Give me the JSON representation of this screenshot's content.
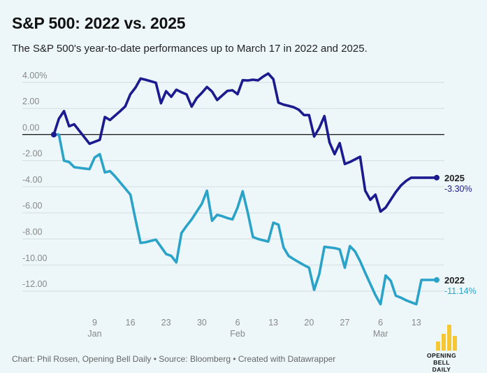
{
  "header": {
    "title": "S&P 500: 2022 vs. 2025",
    "subtitle": "The S&P 500's year-to-date performances up to March 17 in 2022 and 2025."
  },
  "footer": {
    "source": "Chart: Phil Rosen, Opening Bell Daily • Source: Bloomberg • Created with Datawrapper"
  },
  "logo": {
    "line1": "OPENING BELL",
    "line2": "DAILY",
    "color": "#f6c735"
  },
  "colors": {
    "series_2025": "#1c1a8f",
    "series_2022": "#2ba3c9",
    "grid": "#d4dde0",
    "zero_line": "#111111",
    "tick_text": "#888888",
    "background": "#edf7fa"
  },
  "chart_data": {
    "type": "line",
    "x_unit": "day of year",
    "x_tick_labels": [
      {
        "x": 9,
        "label": "9"
      },
      {
        "x": 16,
        "label": "16"
      },
      {
        "x": 23,
        "label": "23"
      },
      {
        "x": 30,
        "label": "30"
      },
      {
        "x": 37,
        "label": "6"
      },
      {
        "x": 44,
        "label": "13"
      },
      {
        "x": 51,
        "label": "20"
      },
      {
        "x": 58,
        "label": "27"
      },
      {
        "x": 65,
        "label": "6"
      },
      {
        "x": 72,
        "label": "13"
      }
    ],
    "month_labels": [
      {
        "x": 9,
        "label": "Jan"
      },
      {
        "x": 37,
        "label": "Feb"
      },
      {
        "x": 65,
        "label": "Mar"
      }
    ],
    "y_ticks": [
      {
        "value": 4,
        "label": "4.00%"
      },
      {
        "value": 2,
        "label": "2.00"
      },
      {
        "value": 0,
        "label": "0.00"
      },
      {
        "value": -2,
        "label": "-2.00"
      },
      {
        "value": -4,
        "label": "-4.00"
      },
      {
        "value": -6,
        "label": "-6.00"
      },
      {
        "value": -8,
        "label": "-8.00"
      },
      {
        "value": -10,
        "label": "-10.00"
      },
      {
        "value": -12,
        "label": "-12.00"
      }
    ],
    "xlim": [
      1,
      76
    ],
    "ylim": [
      -13.5,
      4.9
    ],
    "grid": true,
    "series": [
      {
        "name": "2025",
        "end_label": "-3.30%",
        "x": [
          1,
          2,
          3,
          4,
          5,
          8,
          10,
          11,
          12,
          14,
          15,
          16,
          17,
          18,
          19,
          21,
          22,
          23,
          24,
          25,
          26,
          27,
          28,
          29,
          30,
          31,
          32,
          33,
          35,
          36,
          37,
          38,
          39,
          40,
          41,
          42,
          43,
          44,
          45,
          46,
          47,
          48,
          49,
          50,
          51,
          52,
          53,
          54,
          55,
          56,
          57,
          58,
          59,
          61,
          62,
          63,
          64,
          65,
          66,
          67,
          68,
          69,
          70,
          71,
          72,
          73,
          74,
          75,
          76
        ],
        "y": [
          0.0,
          1.22,
          1.8,
          0.64,
          0.79,
          -0.7,
          -0.4,
          1.35,
          1.12,
          1.8,
          2.17,
          3.1,
          3.6,
          4.3,
          4.2,
          3.98,
          2.4,
          3.33,
          2.9,
          3.44,
          3.25,
          3.08,
          2.15,
          2.8,
          3.2,
          3.65,
          3.3,
          2.65,
          3.35,
          3.4,
          3.1,
          4.17,
          4.15,
          4.21,
          4.16,
          4.45,
          4.68,
          4.25,
          2.45,
          2.3,
          2.2,
          2.1,
          1.9,
          1.5,
          1.5,
          -0.15,
          0.5,
          1.42,
          -0.6,
          -1.5,
          -0.65,
          -2.25,
          -2.1,
          -1.7,
          -4.3,
          -5.0,
          -4.6,
          -5.9,
          -5.6,
          -5.0,
          -4.4,
          -3.9,
          -3.55,
          -3.3,
          -3.3,
          -3.3,
          -3.3,
          -3.3,
          -3.3
        ]
      },
      {
        "name": "2022",
        "end_label": "-11.14%",
        "x": [
          1,
          2,
          3,
          4,
          5,
          6,
          8,
          9,
          10,
          11,
          12,
          13,
          16,
          17,
          18,
          19,
          20,
          21,
          23,
          24,
          25,
          26,
          27,
          28,
          30,
          31,
          32,
          33,
          34,
          35,
          36,
          37,
          38,
          39,
          40,
          41,
          43,
          44,
          45,
          46,
          47,
          48,
          50,
          51,
          52,
          53,
          54,
          56,
          57,
          58,
          59,
          60,
          61,
          62,
          64,
          65,
          66,
          67,
          68,
          69,
          70,
          71,
          72,
          73,
          74,
          75,
          76
        ],
        "y": [
          0.0,
          0.0,
          -2.0,
          -2.1,
          -2.5,
          -2.55,
          -2.65,
          -1.75,
          -1.5,
          -2.9,
          -2.8,
          -3.2,
          -4.6,
          -6.5,
          -8.3,
          -8.25,
          -8.15,
          -8.05,
          -9.15,
          -9.3,
          -9.8,
          -7.55,
          -7.0,
          -6.5,
          -5.3,
          -4.3,
          -6.6,
          -6.15,
          -6.25,
          -6.4,
          -6.5,
          -5.6,
          -4.35,
          -6.0,
          -7.85,
          -8.0,
          -8.2,
          -6.75,
          -6.9,
          -8.65,
          -9.3,
          -9.55,
          -10.0,
          -10.2,
          -11.9,
          -10.7,
          -8.6,
          -8.7,
          -8.8,
          -10.2,
          -8.55,
          -8.95,
          -9.7,
          -10.6,
          -12.3,
          -13.0,
          -10.8,
          -11.2,
          -12.35,
          -12.5,
          -12.7,
          -12.85,
          -13.0,
          -11.14,
          -11.14,
          -11.14,
          -11.14
        ]
      }
    ]
  }
}
